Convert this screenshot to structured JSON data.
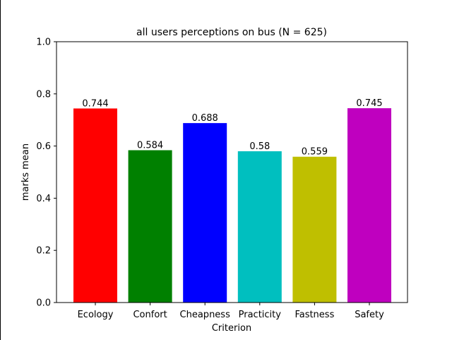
{
  "chart_data": {
    "type": "bar",
    "title": "all users perceptions on bus (N = 625)",
    "xlabel": "Criterion",
    "ylabel": "marks mean",
    "categories": [
      "Ecology",
      "Confort",
      "Cheapness",
      "Practicity",
      "Fastness",
      "Safety"
    ],
    "values": [
      0.744,
      0.584,
      0.688,
      0.58,
      0.559,
      0.745
    ],
    "value_labels": [
      "0.744",
      "0.584",
      "0.688",
      "0.58",
      "0.559",
      "0.745"
    ],
    "colors": [
      "#ff0000",
      "#008000",
      "#0000ff",
      "#00bfbf",
      "#bfbf00",
      "#bf00bf"
    ],
    "ylim": [
      0,
      1
    ],
    "yticks": [
      "0.0",
      "0.2",
      "0.4",
      "0.6",
      "0.8",
      "1.0"
    ],
    "grid": false,
    "legend": "none"
  }
}
